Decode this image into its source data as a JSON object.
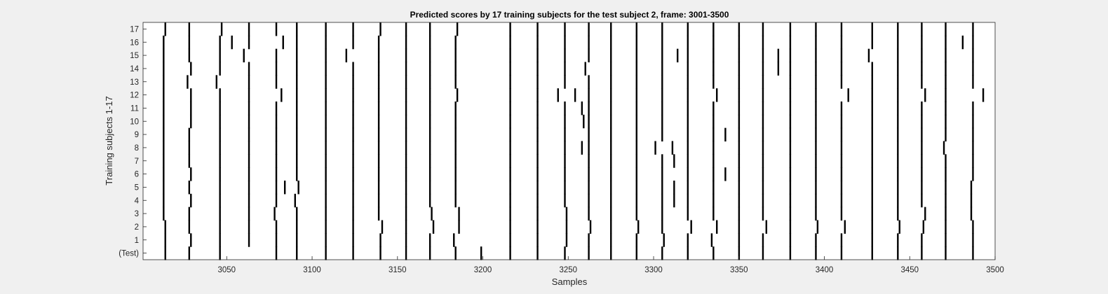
{
  "chart_data": {
    "type": "raster",
    "title": "Predicted scores by 17 training subjects for the test subject 2, frame: 3001-3500",
    "xlabel": "Samples",
    "ylabel": "Training subjects 1-17",
    "xlim": [
      3001,
      3500
    ],
    "x_ticks": [
      3050,
      3100,
      3150,
      3200,
      3250,
      3300,
      3350,
      3400,
      3450,
      3500
    ],
    "rows": [
      "(Test)",
      "1",
      "2",
      "3",
      "4",
      "5",
      "6",
      "7",
      "8",
      "9",
      "10",
      "11",
      "12",
      "13",
      "14",
      "15",
      "16",
      "17"
    ],
    "common_events": [
      3014,
      3028,
      3046,
      3063,
      3079,
      3091,
      3108,
      3124,
      3139,
      3155,
      3169,
      3184,
      3216,
      3232,
      3248,
      3262,
      3275,
      3290,
      3305,
      3320,
      3335,
      3350,
      3364,
      3380,
      3395,
      3410,
      3428,
      3443,
      3457,
      3471,
      3487
    ],
    "row_events": {
      "(Test)": [
        3014,
        3028,
        3046,
        3079,
        3091,
        3108,
        3124,
        3140,
        3155,
        3169,
        3184,
        3199,
        3216,
        3232,
        3248,
        3262,
        3275,
        3290,
        3305,
        3320,
        3335,
        3350,
        3364,
        3380,
        3395,
        3410,
        3428,
        3443,
        3457,
        3471,
        3487
      ],
      "1": [
        3014,
        3029,
        3046,
        3063,
        3079,
        3091,
        3108,
        3124,
        3140,
        3155,
        3169,
        3183,
        3216,
        3232,
        3249,
        3262,
        3275,
        3290,
        3306,
        3320,
        3334,
        3350,
        3364,
        3380,
        3395,
        3410,
        3428,
        3443,
        3457,
        3471,
        3487
      ],
      "2": [
        3014,
        3028,
        3046,
        3063,
        3079,
        3091,
        3108,
        3124,
        3141,
        3155,
        3171,
        3186,
        3216,
        3232,
        3249,
        3263,
        3275,
        3291,
        3305,
        3322,
        3337,
        3350,
        3366,
        3380,
        3396,
        3412,
        3428,
        3444,
        3458,
        3471,
        3487
      ],
      "3": [
        3013,
        3028,
        3046,
        3063,
        3078,
        3091,
        3108,
        3124,
        3139,
        3155,
        3170,
        3186,
        3216,
        3232,
        3249,
        3262,
        3275,
        3290,
        3305,
        3320,
        3335,
        3350,
        3364,
        3380,
        3395,
        3410,
        3428,
        3443,
        3459,
        3471,
        3486
      ],
      "4": [
        3013,
        3029,
        3046,
        3063,
        3079,
        3090,
        3108,
        3124,
        3139,
        3155,
        3169,
        3184,
        3216,
        3232,
        3248,
        3262,
        3275,
        3290,
        3305,
        3312,
        3320,
        3335,
        3350,
        3364,
        3380,
        3395,
        3410,
        3428,
        3443,
        3457,
        3471,
        3486
      ],
      "5": [
        3013,
        3028,
        3046,
        3063,
        3079,
        3084,
        3092,
        3108,
        3124,
        3139,
        3155,
        3169,
        3184,
        3216,
        3232,
        3248,
        3262,
        3275,
        3290,
        3305,
        3312,
        3320,
        3335,
        3350,
        3364,
        3380,
        3395,
        3410,
        3428,
        3443,
        3457,
        3471,
        3486
      ],
      "6": [
        3013,
        3029,
        3046,
        3063,
        3079,
        3091,
        3108,
        3124,
        3139,
        3155,
        3169,
        3184,
        3216,
        3232,
        3248,
        3262,
        3275,
        3290,
        3305,
        3320,
        3335,
        3342,
        3350,
        3364,
        3380,
        3395,
        3410,
        3428,
        3443,
        3457,
        3471,
        3487
      ],
      "7": [
        3013,
        3028,
        3046,
        3063,
        3079,
        3091,
        3108,
        3124,
        3139,
        3155,
        3169,
        3184,
        3216,
        3232,
        3248,
        3262,
        3275,
        3290,
        3305,
        3312,
        3320,
        3335,
        3350,
        3364,
        3380,
        3395,
        3410,
        3428,
        3443,
        3457,
        3471,
        3487
      ],
      "8": [
        3013,
        3028,
        3046,
        3063,
        3079,
        3091,
        3108,
        3124,
        3139,
        3155,
        3169,
        3184,
        3216,
        3232,
        3248,
        3258,
        3262,
        3275,
        3290,
        3301,
        3311,
        3320,
        3335,
        3350,
        3364,
        3380,
        3395,
        3410,
        3428,
        3443,
        3457,
        3470,
        3487
      ],
      "9": [
        3013,
        3028,
        3046,
        3063,
        3079,
        3091,
        3108,
        3124,
        3139,
        3155,
        3169,
        3184,
        3216,
        3232,
        3248,
        3262,
        3275,
        3290,
        3305,
        3320,
        3335,
        3342,
        3350,
        3364,
        3380,
        3395,
        3410,
        3428,
        3443,
        3457,
        3471,
        3487
      ],
      "10": [
        3013,
        3029,
        3046,
        3063,
        3079,
        3091,
        3108,
        3124,
        3139,
        3155,
        3169,
        3184,
        3216,
        3232,
        3248,
        3259,
        3262,
        3275,
        3290,
        3305,
        3320,
        3335,
        3350,
        3364,
        3380,
        3395,
        3410,
        3428,
        3443,
        3457,
        3471,
        3487
      ],
      "11": [
        3013,
        3029,
        3046,
        3063,
        3079,
        3091,
        3108,
        3124,
        3139,
        3155,
        3169,
        3184,
        3216,
        3232,
        3248,
        3258,
        3262,
        3275,
        3290,
        3305,
        3320,
        3335,
        3350,
        3364,
        3380,
        3395,
        3410,
        3428,
        3443,
        3457,
        3471,
        3487
      ],
      "12": [
        3013,
        3029,
        3046,
        3063,
        3082,
        3091,
        3108,
        3124,
        3139,
        3155,
        3169,
        3185,
        3216,
        3232,
        3244,
        3254,
        3262,
        3275,
        3290,
        3305,
        3320,
        3337,
        3350,
        3364,
        3380,
        3395,
        3414,
        3428,
        3443,
        3459,
        3471,
        3493
      ],
      "13": [
        3013,
        3027,
        3044,
        3063,
        3079,
        3091,
        3108,
        3124,
        3139,
        3155,
        3169,
        3184,
        3216,
        3232,
        3248,
        3262,
        3275,
        3290,
        3305,
        3320,
        3335,
        3350,
        3364,
        3380,
        3395,
        3410,
        3428,
        3443,
        3457,
        3471,
        3487
      ],
      "14": [
        3013,
        3029,
        3046,
        3063,
        3079,
        3091,
        3108,
        3124,
        3139,
        3155,
        3169,
        3184,
        3216,
        3232,
        3248,
        3260,
        3275,
        3290,
        3305,
        3320,
        3335,
        3350,
        3364,
        3373,
        3380,
        3395,
        3410,
        3428,
        3443,
        3457,
        3471,
        3487
      ],
      "15": [
        3013,
        3028,
        3046,
        3060,
        3079,
        3091,
        3108,
        3120,
        3139,
        3155,
        3169,
        3184,
        3216,
        3232,
        3248,
        3262,
        3275,
        3290,
        3305,
        3314,
        3320,
        3335,
        3350,
        3364,
        3373,
        3380,
        3395,
        3410,
        3426,
        3443,
        3457,
        3471,
        3487
      ],
      "16": [
        3013,
        3028,
        3046,
        3053,
        3063,
        3083,
        3091,
        3108,
        3124,
        3139,
        3155,
        3169,
        3184,
        3216,
        3232,
        3248,
        3262,
        3275,
        3290,
        3305,
        3320,
        3335,
        3350,
        3364,
        3380,
        3395,
        3410,
        3428,
        3443,
        3457,
        3471,
        3481,
        3487
      ],
      "17": [
        3014,
        3028,
        3047,
        3063,
        3079,
        3091,
        3108,
        3124,
        3140,
        3155,
        3169,
        3185,
        3216,
        3232,
        3248,
        3262,
        3275,
        3290,
        3305,
        3320,
        3335,
        3350,
        3364,
        3380,
        3395,
        3410,
        3428,
        3443,
        3457,
        3471,
        3487
      ]
    },
    "grid": false,
    "colors": {
      "figure_bg": "#f0f0f0",
      "axes_bg": "#ffffff",
      "mark": "#000000",
      "axis": "#262626"
    }
  }
}
